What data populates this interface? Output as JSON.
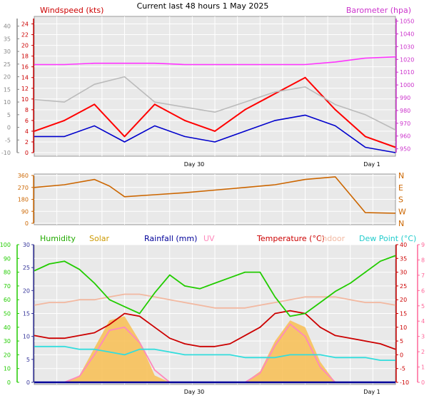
{
  "title": "Current last 48 hours 1 May 2025",
  "x_labels": [
    "Day 30",
    "Day 1"
  ],
  "colors": {
    "wind_gust": "#ff0000",
    "wind_avg": "#0000cc",
    "barometer": "#ff33ff",
    "wind_dir": "#cc6600",
    "humidity": "#22cc00",
    "solar": "#f7c15a",
    "rain": "#000099",
    "uv": "#ff88bb",
    "temperature": "#cc0000",
    "indoor": "#f2b8a0",
    "dewpoint": "#33dddd",
    "apparent": "#b0a8e0",
    "panel_bg": "#e9e9e9",
    "grid": "#ffffff"
  },
  "chart_data": [
    {
      "type": "line",
      "title": "",
      "left_axis": {
        "label": "Windspeed (kts)",
        "ticks": [
          0,
          2,
          4,
          6,
          8,
          10,
          12,
          14,
          16,
          18,
          20,
          22,
          24
        ],
        "range": [
          0,
          25
        ]
      },
      "outer_left_axis": {
        "ticks": [
          -10,
          -5,
          0,
          5,
          10,
          15,
          20,
          25,
          30,
          35,
          40
        ],
        "range": [
          -10,
          43
        ]
      },
      "right_axis": {
        "label": "Barometer (hpa)",
        "ticks": [
          950,
          960,
          970,
          980,
          990,
          1000,
          1010,
          1020,
          1030,
          1040,
          1050
        ],
        "range": [
          947,
          1052
        ]
      },
      "x": [
        0,
        4,
        8,
        12,
        16,
        20,
        24,
        28,
        32,
        36,
        40,
        44,
        48
      ],
      "series": [
        {
          "key": "wind_gust",
          "axis": "left",
          "values": [
            4,
            6,
            9,
            3,
            9,
            6,
            4,
            8,
            11,
            14,
            8,
            3,
            1
          ]
        },
        {
          "key": "wind_avg",
          "axis": "left",
          "values": [
            3,
            3,
            5,
            2,
            5,
            3,
            2,
            4,
            6,
            7,
            5,
            1,
            0
          ]
        },
        {
          "key": "temp_grey",
          "axis": "outer_left",
          "values": [
            11,
            10,
            17,
            20,
            10,
            8,
            6,
            10,
            14,
            16,
            9,
            5,
            -1
          ]
        },
        {
          "key": "barometer",
          "axis": "right",
          "values": [
            1016,
            1016,
            1017,
            1017,
            1017,
            1016,
            1016,
            1016,
            1016,
            1016,
            1018,
            1021,
            1022
          ]
        }
      ]
    },
    {
      "type": "line",
      "title": "",
      "left_axis": {
        "ticks": [
          0,
          90,
          180,
          270,
          360
        ],
        "range": [
          0,
          360
        ]
      },
      "right_axis": {
        "ticks": [
          "N",
          "W",
          "S",
          "E",
          "N"
        ]
      },
      "x": [
        0,
        4,
        8,
        10,
        12,
        16,
        20,
        24,
        28,
        32,
        36,
        40,
        44,
        48
      ],
      "series": [
        {
          "key": "wind_dir",
          "values": [
            270,
            290,
            330,
            280,
            200,
            215,
            230,
            250,
            270,
            290,
            330,
            350,
            80,
            75
          ]
        }
      ]
    },
    {
      "type": "line",
      "title": "",
      "legend": [
        "Humidity",
        "Solar",
        "Rainfall (mm)",
        "UV",
        "Temperature (°C)",
        "Indoor",
        "Dew Point (°C)"
      ],
      "humidity_axis": {
        "ticks": [
          0,
          10,
          20,
          30,
          40,
          50,
          60,
          70,
          80,
          90,
          100
        ],
        "range": [
          0,
          100
        ]
      },
      "rain_axis": {
        "ticks": [
          0,
          5,
          10,
          15,
          20,
          25,
          30
        ],
        "range": [
          0,
          30
        ]
      },
      "temp_axis": {
        "ticks": [
          -10,
          -5,
          0,
          5,
          10,
          15,
          20,
          25,
          30,
          35,
          40
        ],
        "range": [
          -10,
          40
        ]
      },
      "uv_axis": {
        "ticks": [
          0,
          1,
          2,
          3,
          4,
          5,
          6,
          7,
          8,
          9
        ],
        "range": [
          0,
          9
        ]
      },
      "x": [
        0,
        2,
        4,
        6,
        8,
        10,
        12,
        14,
        16,
        18,
        20,
        22,
        24,
        26,
        28,
        30,
        32,
        34,
        36,
        38,
        40,
        42,
        44,
        46,
        48
      ],
      "series": [
        {
          "key": "humidity",
          "axis": "humidity",
          "values": [
            81,
            86,
            88,
            82,
            72,
            60,
            55,
            50,
            65,
            78,
            70,
            68,
            72,
            76,
            80,
            80,
            62,
            48,
            50,
            58,
            66,
            72,
            80,
            88,
            92
          ]
        },
        {
          "key": "temperature",
          "axis": "temp",
          "values": [
            7,
            6,
            6,
            7,
            8,
            11,
            15,
            14,
            10,
            6,
            4,
            3,
            3,
            4,
            7,
            10,
            15,
            16,
            15,
            10,
            7,
            6,
            5,
            4,
            2
          ]
        },
        {
          "key": "dewpoint",
          "axis": "temp",
          "values": [
            3,
            3,
            3,
            2,
            2,
            1,
            0,
            2,
            2,
            1,
            0,
            0,
            0,
            0,
            -1,
            -1,
            -1,
            0,
            0,
            0,
            -1,
            -1,
            -1,
            -2,
            -2
          ]
        },
        {
          "key": "indoor",
          "axis": "temp",
          "values": [
            18,
            19,
            19,
            20,
            20,
            21,
            22,
            22,
            21,
            20,
            19,
            18,
            17,
            17,
            17,
            18,
            19,
            20,
            21,
            21,
            21,
            20,
            19,
            19,
            18
          ]
        },
        {
          "key": "solar",
          "axis": "humidity",
          "values": [
            0,
            0,
            0,
            5,
            25,
            45,
            48,
            30,
            5,
            0,
            0,
            0,
            0,
            0,
            0,
            8,
            30,
            45,
            40,
            15,
            0,
            0,
            0,
            0,
            0
          ]
        },
        {
          "key": "uv",
          "axis": "uv",
          "values": [
            0,
            0,
            0,
            0.4,
            1.8,
            3.4,
            3.6,
            2.6,
            0.8,
            0,
            0,
            0,
            0,
            0,
            0,
            0.6,
            2.4,
            3.8,
            3.0,
            1.0,
            0,
            0,
            0,
            0,
            0
          ]
        },
        {
          "key": "rain",
          "axis": "rain",
          "values": [
            0,
            0,
            0,
            0,
            0,
            0,
            0,
            0,
            0,
            0,
            0,
            0,
            0,
            0,
            0,
            0,
            0,
            0,
            0,
            0,
            0,
            0,
            0,
            0,
            0
          ]
        }
      ]
    }
  ]
}
